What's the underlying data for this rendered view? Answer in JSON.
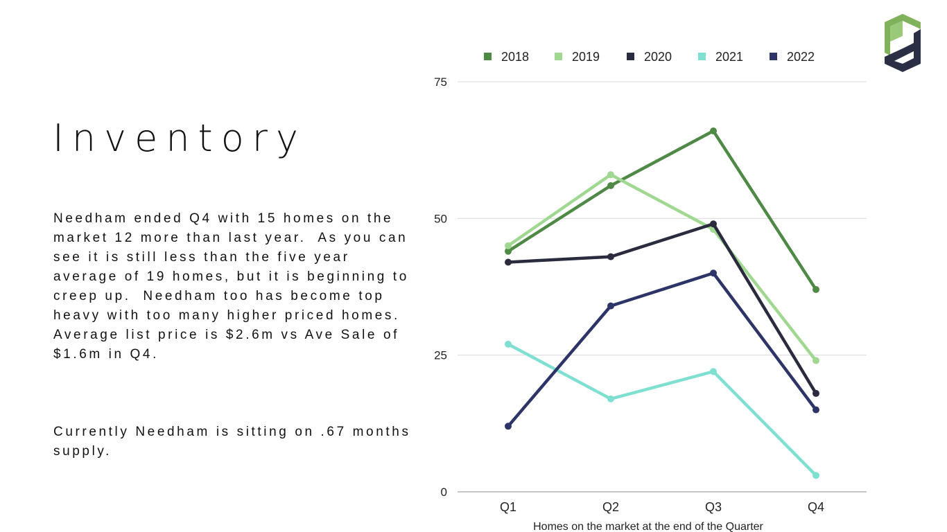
{
  "slide": {
    "title": "Inventory",
    "paragraphs": [
      "Needham ended Q4 with 15 homes on the market 12 more than last year.  As you can see it is still less than the five year average of 19 homes, but it is beginning to creep up.  Needham too has become top heavy with too many higher priced homes.  Average list price is $2.6m vs Ave Sale of $1.6m in Q4.",
      "Currently Needham is sitting on .67 months supply."
    ]
  },
  "logo": {
    "icon": "pd-logo-icon",
    "colors": {
      "green": "#7FB25A",
      "dark": "#2B2F45"
    }
  },
  "chart_data": {
    "type": "line",
    "title": "",
    "xlabel": "Homes on the market at the end of the Quarter",
    "ylabel": "",
    "categories": [
      "Q1",
      "Q2",
      "Q3",
      "Q4"
    ],
    "ylim": [
      0,
      75
    ],
    "yticks": [
      0,
      25,
      50,
      75
    ],
    "grid": true,
    "legend_position": "top",
    "series": [
      {
        "name": "2018",
        "color": "#4E8A46",
        "values": [
          44,
          56,
          66,
          37
        ]
      },
      {
        "name": "2019",
        "color": "#A1D891",
        "values": [
          45,
          58,
          48,
          24
        ]
      },
      {
        "name": "2020",
        "color": "#2A2B3F",
        "values": [
          42,
          43,
          49,
          18
        ]
      },
      {
        "name": "2021",
        "color": "#7FE0D2",
        "values": [
          27,
          17,
          22,
          3
        ]
      },
      {
        "name": "2022",
        "color": "#2D3468",
        "values": [
          12,
          34,
          40,
          15
        ]
      }
    ]
  }
}
